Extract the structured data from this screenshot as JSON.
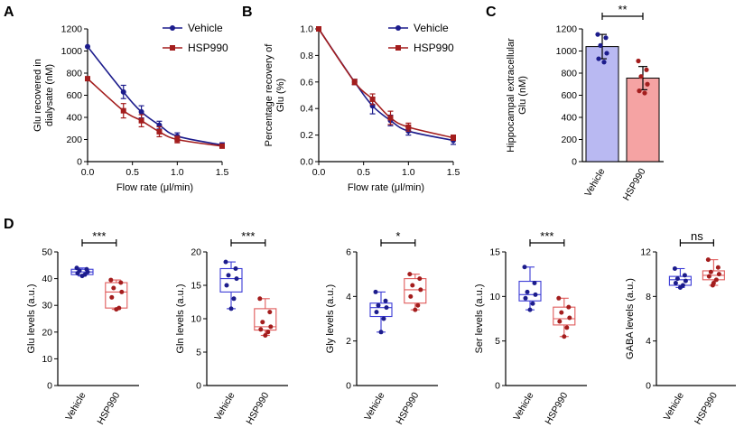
{
  "colors": {
    "vehicle": "#1c1c8c",
    "hsp": "#a31d1d",
    "vehicle_fill": "#b9b9f2",
    "hsp_fill": "#f5a3a3",
    "box_blue": "#3b3bd6",
    "box_red": "#e05a5a"
  },
  "chart_data": [
    {
      "panel": "A",
      "type": "line",
      "xlabel": "Flow rate (μl/min)",
      "ylabel": [
        "Glu recovered in",
        "dialysate (nM)"
      ],
      "xlim": [
        0,
        1.5
      ],
      "ylim": [
        0,
        1200
      ],
      "xticks": [
        "0.0",
        "0.5",
        "1.0",
        "1.5"
      ],
      "yticks": [
        "0",
        "200",
        "400",
        "600",
        "800",
        "1000",
        "1200"
      ],
      "legend": [
        "Vehicle",
        "HSP990"
      ],
      "series": [
        {
          "name": "Vehicle",
          "x": [
            0,
            0.4,
            0.6,
            0.8,
            1.0,
            1.5
          ],
          "y": [
            1040,
            630,
            450,
            330,
            230,
            150
          ],
          "err": [
            0,
            60,
            55,
            35,
            30,
            20
          ]
        },
        {
          "name": "HSP990",
          "x": [
            0,
            0.4,
            0.6,
            0.8,
            1.0,
            1.5
          ],
          "y": [
            750,
            460,
            370,
            270,
            200,
            140
          ],
          "err": [
            0,
            65,
            55,
            45,
            30,
            15
          ]
        }
      ]
    },
    {
      "panel": "B",
      "type": "line",
      "xlabel": "Flow rate (μl/min)",
      "ylabel": [
        "Percentage recovery of",
        "Glu (%)"
      ],
      "xlim": [
        0,
        1.5
      ],
      "ylim": [
        0,
        1.0
      ],
      "xticks": [
        "0.0",
        "0.5",
        "1.0",
        "1.5"
      ],
      "yticks": [
        "0.0",
        "0.2",
        "0.4",
        "0.6",
        "0.8",
        "1.0"
      ],
      "legend": [
        "Vehicle",
        "HSP990"
      ],
      "series": [
        {
          "name": "Vehicle",
          "x": [
            0,
            0.4,
            0.6,
            0.8,
            1.0,
            1.5
          ],
          "y": [
            1.0,
            0.6,
            0.42,
            0.31,
            0.23,
            0.16
          ],
          "err": [
            0,
            0.02,
            0.06,
            0.04,
            0.03,
            0.03
          ]
        },
        {
          "name": "HSP990",
          "x": [
            0,
            0.4,
            0.6,
            0.8,
            1.0,
            1.5
          ],
          "y": [
            1.0,
            0.6,
            0.47,
            0.33,
            0.26,
            0.18
          ],
          "err": [
            0,
            0.02,
            0.04,
            0.05,
            0.03,
            0.02
          ]
        }
      ]
    },
    {
      "panel": "C",
      "type": "bar",
      "ylabel": [
        "Hippocampal extracellular",
        "Glu (nM)"
      ],
      "ylim": [
        0,
        1200
      ],
      "yticks": [
        "0",
        "200",
        "400",
        "600",
        "800",
        "1000",
        "1200"
      ],
      "categories": [
        "Vehicle",
        "HSP990"
      ],
      "values": [
        1040,
        755
      ],
      "err": [
        110,
        105
      ],
      "points": [
        [
          1150,
          1120,
          1050,
          980,
          930,
          900
        ],
        [
          910,
          830,
          770,
          700,
          640,
          620
        ]
      ],
      "significance": "**"
    },
    {
      "panel": "D1",
      "type": "box",
      "ylabel": "Glu levels (a.u.)",
      "ylim": [
        0,
        50
      ],
      "yticks": [
        "0",
        "10",
        "20",
        "30",
        "40",
        "50"
      ],
      "categories": [
        "Vehicle",
        "HSP990"
      ],
      "significance": "***",
      "boxes": [
        {
          "min": 41,
          "q1": 41.5,
          "median": 42.5,
          "q3": 43.5,
          "max": 44,
          "points": [
            44,
            43.5,
            43,
            42.5,
            42,
            41.5,
            41
          ]
        },
        {
          "min": 28.5,
          "q1": 29,
          "median": 35,
          "q3": 38.5,
          "max": 39.5,
          "points": [
            39.5,
            38.5,
            36.5,
            35,
            33,
            29,
            28.5
          ]
        }
      ]
    },
    {
      "panel": "D2",
      "type": "box",
      "ylabel": "Gln levels (a.u.)",
      "ylim": [
        0,
        20
      ],
      "yticks": [
        "0",
        "5",
        "10",
        "15",
        "20"
      ],
      "categories": [
        "Vehicle",
        "HSP990"
      ],
      "significance": "***",
      "boxes": [
        {
          "min": 11.5,
          "q1": 14,
          "median": 16,
          "q3": 17.5,
          "max": 18.5,
          "points": [
            18.5,
            17.5,
            16.5,
            16,
            15,
            13,
            11.5
          ]
        },
        {
          "min": 7.5,
          "q1": 8.3,
          "median": 8.8,
          "q3": 11.5,
          "max": 13,
          "points": [
            13,
            11,
            9.5,
            8.8,
            8.4,
            8,
            7.5
          ]
        }
      ]
    },
    {
      "panel": "D3",
      "type": "box",
      "ylabel": "Gly levels (a.u.)",
      "ylim": [
        0,
        6
      ],
      "yticks": [
        "0",
        "2",
        "4",
        "6"
      ],
      "categories": [
        "Vehicle",
        "HSP990"
      ],
      "significance": "*",
      "boxes": [
        {
          "min": 2.4,
          "q1": 3.1,
          "median": 3.5,
          "q3": 3.7,
          "max": 4.2,
          "points": [
            4.2,
            3.8,
            3.6,
            3.5,
            3.3,
            3.0,
            2.4
          ]
        },
        {
          "min": 3.4,
          "q1": 3.7,
          "median": 4.3,
          "q3": 4.8,
          "max": 5.0,
          "points": [
            5.0,
            4.8,
            4.5,
            4.3,
            4.0,
            3.6,
            3.4
          ]
        }
      ]
    },
    {
      "panel": "D4",
      "type": "box",
      "ylabel": "Ser levels (a.u.)",
      "ylim": [
        0,
        15
      ],
      "yticks": [
        "0",
        "5",
        "10",
        "15"
      ],
      "categories": [
        "Vehicle",
        "HSP990"
      ],
      "significance": "***",
      "boxes": [
        {
          "min": 8.5,
          "q1": 9.5,
          "median": 10.2,
          "q3": 11.7,
          "max": 13.3,
          "points": [
            13.3,
            11.5,
            10.5,
            10.2,
            9.8,
            9.2,
            8.5
          ]
        },
        {
          "min": 5.5,
          "q1": 6.8,
          "median": 7.5,
          "q3": 8.8,
          "max": 9.8,
          "points": [
            9.8,
            8.8,
            8.2,
            7.6,
            7.2,
            6.5,
            5.5
          ]
        }
      ]
    },
    {
      "panel": "D5",
      "type": "box",
      "ylabel": "GABA levels (a.u.)",
      "ylim": [
        0,
        12
      ],
      "yticks": [
        "0",
        "4",
        "8",
        "12"
      ],
      "categories": [
        "Vehicle",
        "HSP990"
      ],
      "significance": "ns",
      "boxes": [
        {
          "min": 8.8,
          "q1": 9.0,
          "median": 9.5,
          "q3": 9.8,
          "max": 10.5,
          "points": [
            10.5,
            9.9,
            9.6,
            9.4,
            9.2,
            9.0,
            8.8
          ]
        },
        {
          "min": 9.0,
          "q1": 9.5,
          "median": 9.9,
          "q3": 10.3,
          "max": 11.3,
          "points": [
            11.3,
            10.6,
            10.2,
            10.0,
            9.8,
            9.5,
            9.2,
            9.0
          ]
        }
      ]
    }
  ]
}
